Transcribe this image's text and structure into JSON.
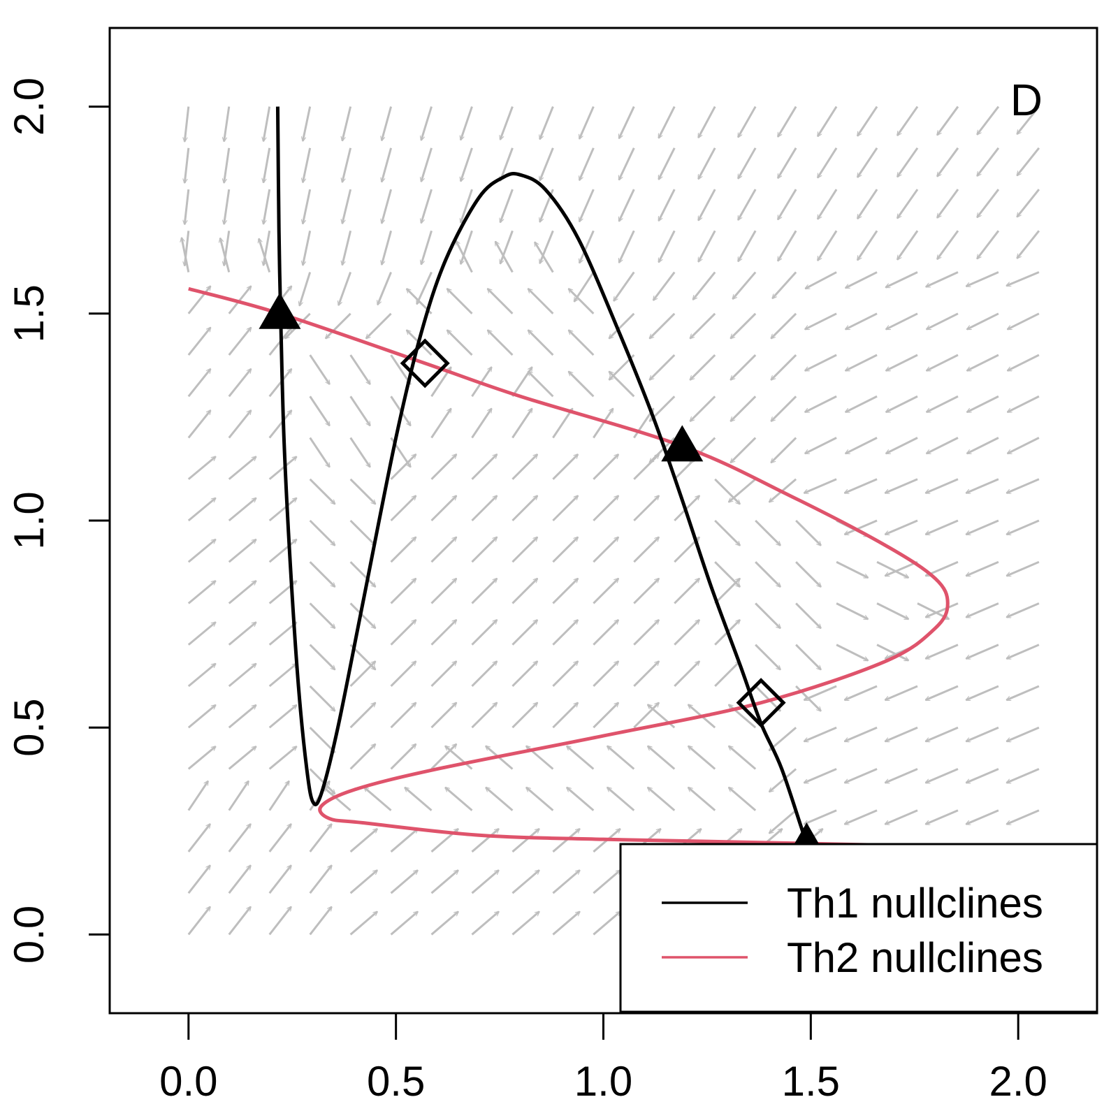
{
  "chart_data": {
    "type": "line",
    "title": "",
    "panel_label": "D",
    "xlabel": "",
    "ylabel": "",
    "xlim": [
      -0.19,
      2.19
    ],
    "ylim": [
      -0.19,
      2.19
    ],
    "x_ticks": [
      "0.0",
      "0.5",
      "1.0",
      "1.5",
      "2.0"
    ],
    "y_ticks": [
      "0.0",
      "0.5",
      "1.0",
      "1.5",
      "2.0"
    ],
    "grid": false,
    "legend_position": "bottom-right",
    "colors": {
      "th1": "#000000",
      "th2": "#DF536B",
      "field": "#BEBEBE"
    },
    "series": [
      {
        "name": "Th1 nullclines",
        "x": [
          0.215,
          0.218,
          0.222,
          0.23,
          0.245,
          0.265,
          0.285,
          0.3,
          0.32,
          0.36,
          0.42,
          0.5,
          0.56,
          0.62,
          0.7,
          0.76,
          0.8,
          0.86,
          0.94,
          1.04,
          1.12,
          1.19,
          1.26,
          1.33,
          1.38,
          1.43,
          1.49,
          1.55
        ],
        "y": [
          2.0,
          1.7,
          1.5,
          1.2,
          0.9,
          0.6,
          0.4,
          0.32,
          0.34,
          0.5,
          0.8,
          1.2,
          1.45,
          1.63,
          1.78,
          1.83,
          1.835,
          1.8,
          1.68,
          1.45,
          1.25,
          1.05,
          0.84,
          0.65,
          0.51,
          0.4,
          0.22,
          0.05
        ]
      },
      {
        "name": "Th2 nullclines",
        "x": [
          0.0,
          0.22,
          0.57,
          0.8,
          1.19,
          1.45,
          1.68,
          1.8,
          1.83,
          1.8,
          1.68,
          1.38,
          1.0,
          0.6,
          0.4,
          0.32,
          0.34,
          0.42,
          0.7,
          1.0,
          1.49,
          2.19
        ],
        "y": [
          1.56,
          1.5,
          1.38,
          1.3,
          1.18,
          1.06,
          0.94,
          0.86,
          0.8,
          0.74,
          0.66,
          0.56,
          0.48,
          0.4,
          0.35,
          0.31,
          0.28,
          0.27,
          0.24,
          0.23,
          0.22,
          0.205
        ]
      }
    ],
    "stable_points": [
      {
        "x": 0.22,
        "y": 1.5
      },
      {
        "x": 1.19,
        "y": 1.18
      },
      {
        "x": 1.49,
        "y": 0.22
      }
    ],
    "unstable_points": [
      {
        "x": 0.57,
        "y": 1.38
      },
      {
        "x": 1.38,
        "y": 0.56
      }
    ],
    "vector_field": {
      "x_range": [
        0.0,
        2.05
      ],
      "y_range": [
        0.0,
        2.0
      ],
      "nx": 22,
      "ny": 21
    }
  }
}
